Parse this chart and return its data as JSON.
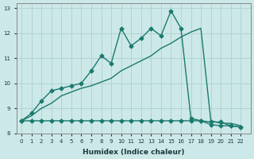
{
  "line1_x": [
    0,
    1,
    2,
    3,
    4,
    5,
    6,
    7,
    8,
    9,
    10,
    11,
    12,
    13,
    14,
    15,
    16,
    17,
    18,
    19,
    20,
    21,
    22
  ],
  "line1_y": [
    8.5,
    8.8,
    9.3,
    9.7,
    9.8,
    9.9,
    10.0,
    10.5,
    11.1,
    10.8,
    12.2,
    11.5,
    11.8,
    12.2,
    11.9,
    12.9,
    12.2,
    8.6,
    8.5,
    8.45,
    8.45,
    8.3,
    8.25
  ],
  "line2_x": [
    0,
    1,
    2,
    3,
    4,
    5,
    6,
    7,
    8,
    9,
    10,
    11,
    12,
    13,
    14,
    15,
    16,
    17,
    18,
    19,
    20,
    21,
    22
  ],
  "line2_y": [
    8.5,
    8.7,
    9.0,
    9.2,
    9.5,
    9.65,
    9.8,
    9.9,
    10.05,
    10.2,
    10.5,
    10.7,
    10.9,
    11.1,
    11.4,
    11.6,
    11.85,
    12.05,
    12.2,
    8.5,
    8.4,
    8.4,
    8.3
  ],
  "line3_x": [
    0,
    1,
    2,
    3,
    4,
    5,
    6,
    7,
    8,
    9,
    10,
    11,
    12,
    13,
    14,
    15,
    16,
    17,
    18,
    19,
    20,
    21,
    22
  ],
  "line3_y": [
    8.5,
    8.5,
    8.5,
    8.5,
    8.5,
    8.5,
    8.5,
    8.5,
    8.5,
    8.5,
    8.5,
    8.5,
    8.5,
    8.5,
    8.5,
    8.5,
    8.5,
    8.5,
    8.5,
    8.35,
    8.3,
    8.3,
    8.25
  ],
  "line_color": "#1a7a6e",
  "bg_color": "#cde8e8",
  "grid_color": "#b0d4d4",
  "xlabel": "Humidex (Indice chaleur)",
  "ylabel_ticks": [
    8,
    9,
    10,
    11,
    12,
    13
  ],
  "xlim": [
    -0.5,
    23.0
  ],
  "ylim": [
    8.0,
    13.2
  ],
  "marker": "D",
  "markersize": 2.5,
  "linewidth": 1.0
}
